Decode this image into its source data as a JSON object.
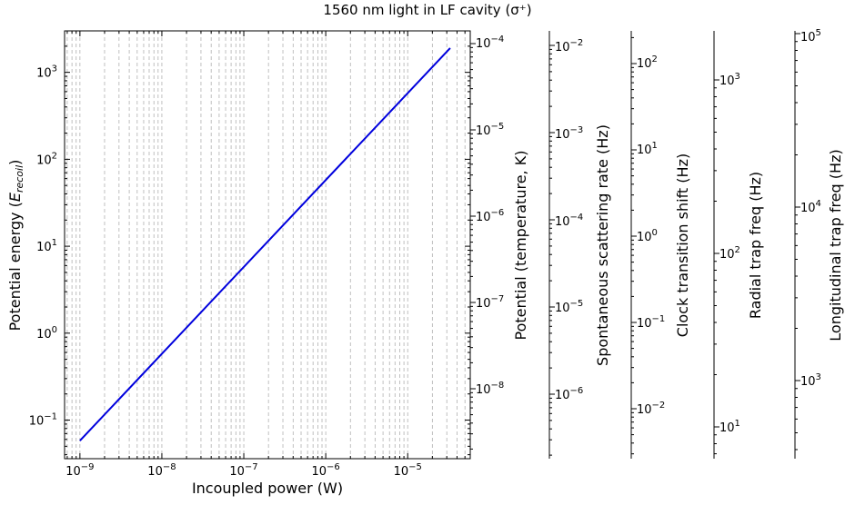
{
  "chart_data": {
    "type": "line",
    "title": "1560 nm light in LF cavity (σ⁺)",
    "xlabel": "Incoupled power (W)",
    "ylabel": "Potential energy (E_recoil)",
    "x_scale": "log",
    "y_scale": "log",
    "xlim": [
      6.5e-10,
      5.8e-05
    ],
    "ylim": [
      0.036,
      3000
    ],
    "x_ticks": [
      {
        "base": "10",
        "exp": "−9"
      },
      {
        "base": "10",
        "exp": "−8"
      },
      {
        "base": "10",
        "exp": "−7"
      },
      {
        "base": "10",
        "exp": "−6"
      },
      {
        "base": "10",
        "exp": "−5"
      }
    ],
    "y_ticks": [
      {
        "base": "10",
        "exp": "−1"
      },
      {
        "base": "10",
        "exp": "0"
      },
      {
        "base": "10",
        "exp": "1"
      },
      {
        "base": "10",
        "exp": "2"
      },
      {
        "base": "10",
        "exp": "3"
      }
    ],
    "grid": "x-major-and-minor-dashed",
    "series": [
      {
        "color": "#0000dd",
        "x": [
          1e-09,
          3.3e-05
        ],
        "y": [
          0.058,
          1900
        ]
      }
    ],
    "secondary_axes": [
      {
        "label": "Potential (temperature, K)",
        "ticks": [
          {
            "base": "10",
            "exp": "−8"
          },
          {
            "base": "10",
            "exp": "−7"
          },
          {
            "base": "10",
            "exp": "−6"
          },
          {
            "base": "10",
            "exp": "−5"
          },
          {
            "base": "10",
            "exp": "−4"
          }
        ]
      },
      {
        "label": "Spontaneous scattering rate (Hz)",
        "ticks": [
          {
            "base": "10",
            "exp": "−6"
          },
          {
            "base": "10",
            "exp": "−5"
          },
          {
            "base": "10",
            "exp": "−4"
          },
          {
            "base": "10",
            "exp": "−3"
          },
          {
            "base": "10",
            "exp": "−2"
          }
        ]
      },
      {
        "label": "Clock transition shift (Hz)",
        "ticks": [
          {
            "base": "10",
            "exp": "−2"
          },
          {
            "base": "10",
            "exp": "−1"
          },
          {
            "base": "10",
            "exp": "0"
          },
          {
            "base": "10",
            "exp": "1"
          },
          {
            "base": "10",
            "exp": "2"
          }
        ]
      },
      {
        "label": "Radial trap freq (Hz)",
        "ticks": [
          {
            "base": "10",
            "exp": "1"
          },
          {
            "base": "10",
            "exp": "2"
          },
          {
            "base": "10",
            "exp": "3"
          }
        ]
      },
      {
        "label": "Longitudinal trap freq (Hz)",
        "ticks": [
          {
            "base": "10",
            "exp": "3"
          },
          {
            "base": "10",
            "exp": "4"
          },
          {
            "base": "10",
            "exp": "5"
          }
        ]
      }
    ]
  }
}
